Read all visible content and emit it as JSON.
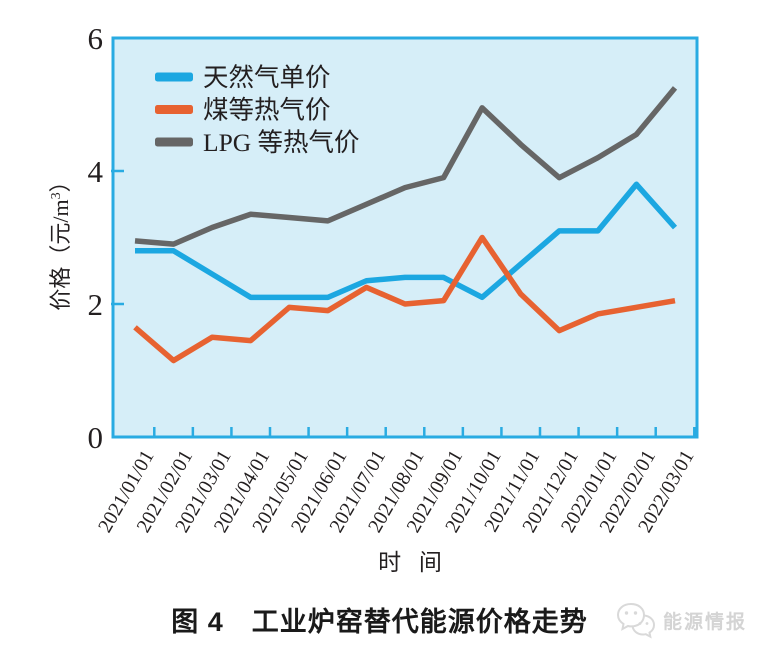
{
  "caption": "图 4　工业炉窑替代能源价格走势",
  "logo": {
    "brand": "能源情报",
    "icon": "chat-bubbles-icon"
  },
  "style": {
    "frame_color": "#29ABE2",
    "plot_bg": "#D6EEF8",
    "text_color": "#231F20",
    "watermark_color": "#D4D4D4"
  },
  "chart_data": {
    "type": "line",
    "title": "图 4　工业炉窑替代能源价格走势",
    "xlabel": "时 间",
    "ylabel": "价格（元/m³）",
    "ylim": [
      0,
      6
    ],
    "yticks": [
      0,
      2,
      4,
      6
    ],
    "grid": false,
    "legend_position": "top-left-inside",
    "x_categories": [
      "2021/01/01",
      "2021/02/01",
      "2021/03/01",
      "2021/04/01",
      "2021/05/01",
      "2021/06/01",
      "2021/07/01",
      "2021/08/01",
      "2021/09/01",
      "2021/10/01",
      "2021/11/01",
      "2021/12/01",
      "2022/01/01",
      "2022/02/01",
      "2022/03/01"
    ],
    "series": [
      {
        "id": "natural-gas",
        "name": "天然气单价",
        "color": "#1CA7E1",
        "values": [
          2.8,
          2.8,
          2.45,
          2.1,
          2.1,
          2.1,
          2.35,
          2.4,
          2.4,
          2.1,
          2.6,
          3.1,
          3.1,
          3.8,
          3.15
        ]
      },
      {
        "id": "coal-heat-equivalent",
        "name": "煤等热气价",
        "color": "#E76231",
        "values": [
          1.65,
          1.15,
          1.5,
          1.45,
          1.95,
          1.9,
          2.25,
          2.0,
          2.05,
          3.0,
          2.15,
          1.6,
          1.85,
          1.95,
          2.05
        ]
      },
      {
        "id": "lpg-heat-equivalent",
        "name": "LPG 等热气价",
        "color": "#666666",
        "values": [
          2.95,
          2.9,
          3.15,
          3.35,
          3.3,
          3.25,
          3.5,
          3.75,
          3.9,
          4.95,
          4.4,
          3.9,
          4.2,
          4.55,
          5.25
        ]
      }
    ]
  }
}
